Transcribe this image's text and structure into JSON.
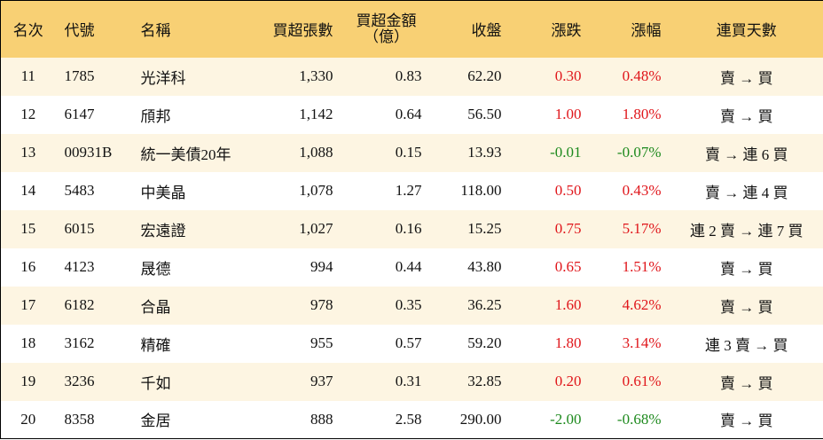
{
  "table": {
    "header": [
      "名次",
      "代號",
      "名稱",
      "買超張數",
      "買超金額\n（億）",
      "收盤",
      "漲跌",
      "漲幅",
      "連買天數"
    ],
    "rows": [
      [
        "11",
        "1785",
        "光洋科",
        "1,330",
        "0.83",
        "62.20",
        "0.30",
        "0.48%",
        "賣 → 買"
      ],
      [
        "12",
        "6147",
        "頎邦",
        "1,142",
        "0.64",
        "56.50",
        "1.00",
        "1.80%",
        "賣 → 買"
      ],
      [
        "13",
        "00931B",
        "統一美債20年",
        "1,088",
        "0.15",
        "13.93",
        "-0.01",
        "-0.07%",
        "賣 → 連 6 買"
      ],
      [
        "14",
        "5483",
        "中美晶",
        "1,078",
        "1.27",
        "118.00",
        "0.50",
        "0.43%",
        "賣 → 連 4 買"
      ],
      [
        "15",
        "6015",
        "宏遠證",
        "1,027",
        "0.16",
        "15.25",
        "0.75",
        "5.17%",
        "連 2 賣 → 連 7 買"
      ],
      [
        "16",
        "4123",
        "晟德",
        "994",
        "0.44",
        "43.80",
        "0.65",
        "1.51%",
        "賣 → 買"
      ],
      [
        "17",
        "6182",
        "合晶",
        "978",
        "0.35",
        "36.25",
        "1.60",
        "4.62%",
        "賣 → 買"
      ],
      [
        "18",
        "3162",
        "精確",
        "955",
        "0.57",
        "59.20",
        "1.80",
        "3.14%",
        "連 3 賣 → 買"
      ],
      [
        "19",
        "3236",
        "千如",
        "937",
        "0.31",
        "32.85",
        "0.20",
        "0.61%",
        "賣 → 買"
      ],
      [
        "20",
        "8358",
        "金居",
        "888",
        "2.58",
        "290.00",
        "-2.00",
        "-0.68%",
        "賣 → 買"
      ]
    ],
    "up_color": "#e0161b",
    "down_color": "#1e8a1e"
  }
}
